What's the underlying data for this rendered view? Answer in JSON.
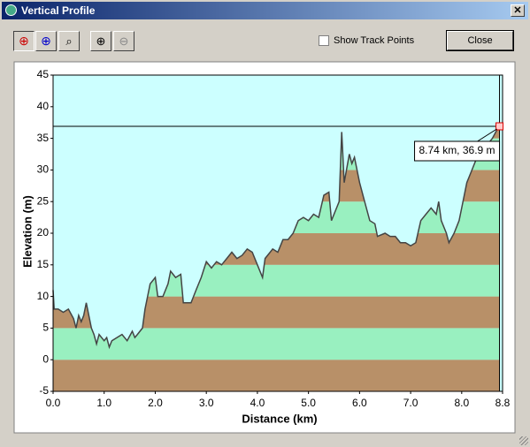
{
  "window": {
    "title": "Vertical Profile",
    "checkbox_label": "Show Track Points",
    "close_button": "Close"
  },
  "chart_data": {
    "type": "area",
    "x_label": "Distance  (km)",
    "y_label": "Elevation  (m)",
    "x": [
      0,
      0.02,
      0.1,
      0.2,
      0.3,
      0.4,
      0.45,
      0.5,
      0.55,
      0.6,
      0.65,
      0.7,
      0.75,
      0.8,
      0.85,
      0.9,
      1.0,
      1.05,
      1.1,
      1.15,
      1.25,
      1.35,
      1.45,
      1.55,
      1.6,
      1.65,
      1.75,
      1.8,
      1.9,
      2.0,
      2.05,
      2.15,
      2.25,
      2.3,
      2.4,
      2.5,
      2.55,
      2.7,
      2.8,
      2.9,
      3.0,
      3.1,
      3.2,
      3.3,
      3.4,
      3.5,
      3.6,
      3.7,
      3.8,
      3.9,
      4.0,
      4.1,
      4.15,
      4.3,
      4.4,
      4.5,
      4.6,
      4.7,
      4.8,
      4.9,
      5.0,
      5.1,
      5.2,
      5.3,
      5.4,
      5.45,
      5.55,
      5.6,
      5.65,
      5.7,
      5.8,
      5.85,
      5.9,
      6.0,
      6.1,
      6.2,
      6.3,
      6.35,
      6.5,
      6.6,
      6.7,
      6.8,
      6.9,
      7.0,
      7.1,
      7.2,
      7.3,
      7.4,
      7.5,
      7.55,
      7.6,
      7.7,
      7.75,
      7.85,
      7.95,
      8.0,
      8.1,
      8.2,
      8.3,
      8.4,
      8.5,
      8.6,
      8.7,
      8.74
    ],
    "values": [
      11,
      8,
      8,
      7.5,
      8,
      6.5,
      5,
      7,
      6,
      7,
      9,
      7,
      5,
      4,
      2.5,
      4,
      3,
      3.5,
      2,
      3,
      3.5,
      4,
      3,
      4.5,
      3.5,
      4,
      5,
      8,
      12,
      13,
      10,
      10,
      12,
      14,
      13,
      13.5,
      9,
      9,
      11,
      13,
      15.5,
      14.5,
      15.5,
      15,
      16,
      17,
      16,
      16.5,
      17.5,
      17,
      15,
      13,
      16,
      17.5,
      17,
      19,
      19,
      20,
      22,
      22.5,
      22,
      23,
      22.5,
      26,
      26.5,
      22,
      24,
      25,
      36,
      28,
      32.5,
      31,
      32,
      28,
      25,
      22,
      21.5,
      19.5,
      20,
      19.5,
      19.5,
      18.5,
      18.5,
      18,
      18.5,
      22,
      23,
      24,
      23,
      25,
      22,
      20,
      18.5,
      20,
      22,
      24,
      28,
      30,
      32,
      33.5,
      34,
      35,
      36.5,
      36.9
    ],
    "xlim": [
      0,
      8.8
    ],
    "ylim": [
      -5,
      45
    ],
    "xticks": [
      {
        "value": 0,
        "label": "0.0"
      },
      {
        "value": 1,
        "label": "1.0"
      },
      {
        "value": 2,
        "label": "2.0"
      },
      {
        "value": 3,
        "label": "3.0"
      },
      {
        "value": 4,
        "label": "4.0"
      },
      {
        "value": 5,
        "label": "5.0"
      },
      {
        "value": 6,
        "label": "6.0"
      },
      {
        "value": 7,
        "label": "7.0"
      },
      {
        "value": 8,
        "label": "8.0"
      },
      {
        "value": 8.8,
        "label": "8.8"
      }
    ],
    "yticks": [
      -5,
      0,
      5,
      10,
      15,
      20,
      25,
      30,
      35,
      40,
      45
    ],
    "line_color": "#444444",
    "band_colors": [
      "#b89068",
      "#99f0c0"
    ],
    "background": "#ccffff",
    "cursor": {
      "x": 8.74,
      "y": 36.9,
      "label": "8.74 km, 36.9 m"
    }
  }
}
